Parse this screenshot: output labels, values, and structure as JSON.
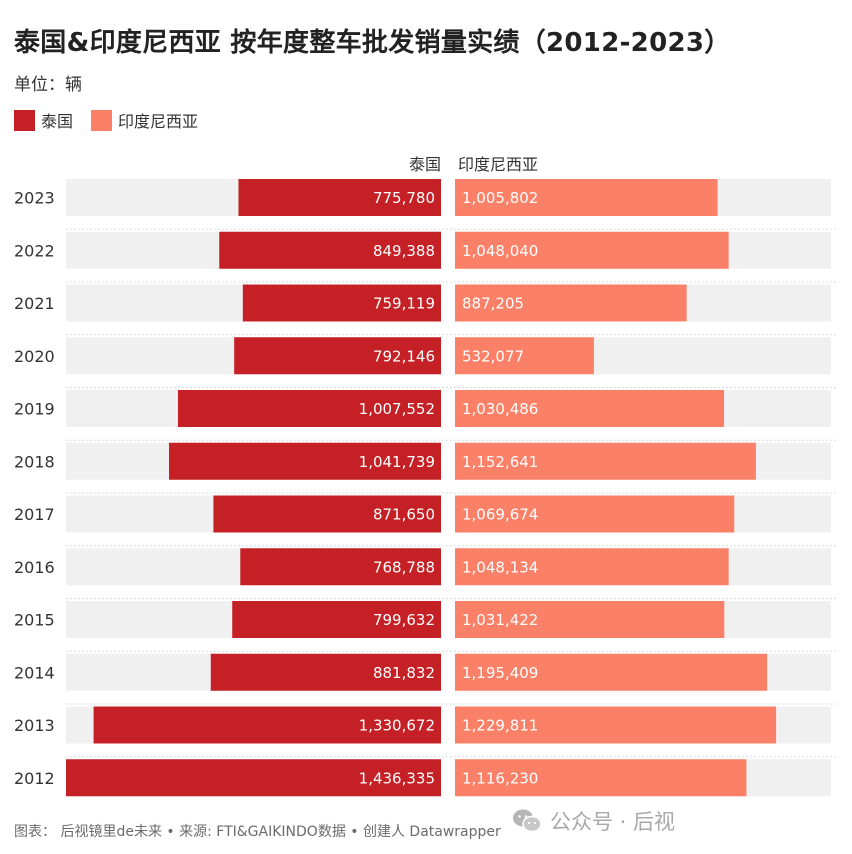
{
  "title": "泰国&印度尼西亚 按年度整车批发销量实绩（2012-2023）",
  "unit": "单位：辆",
  "legend": [
    {
      "label": "泰国",
      "color": "#c42026"
    },
    {
      "label": "印度尼西亚",
      "color": "#fb8068"
    }
  ],
  "column_headers": {
    "left": "泰国",
    "right": "印度尼西亚"
  },
  "footer": "图表： 后视镜里de未来 • 来源: FTI&GAIKINDO数据 • 创建人 Datawrapper",
  "watermark": {
    "text": "公众号 · 后视",
    "icon": "wechat-icon"
  },
  "colors": {
    "thailand": "#c42026",
    "indonesia": "#fb8068",
    "track": "#f0f0f0",
    "divider": "#cfcfcf"
  },
  "chart_data": {
    "type": "bar",
    "orientation": "horizontal-diverging",
    "categories": [
      "2023",
      "2022",
      "2021",
      "2020",
      "2019",
      "2018",
      "2017",
      "2016",
      "2015",
      "2014",
      "2013",
      "2012"
    ],
    "series": [
      {
        "name": "泰国",
        "values": [
          775780,
          849388,
          759119,
          792146,
          1007552,
          1041739,
          871650,
          768788,
          799632,
          881832,
          1330672,
          1436335
        ],
        "labels": [
          "775,780",
          "849,388",
          "759,119",
          "792,146",
          "1,007,552",
          "1,041,739",
          "871,650",
          "768,788",
          "799,632",
          "881,832",
          "1,330,672",
          "1,436,335"
        ]
      },
      {
        "name": "印度尼西亚",
        "values": [
          1005802,
          1048040,
          887205,
          532077,
          1030486,
          1152641,
          1069674,
          1048134,
          1031422,
          1195409,
          1229811,
          1116230
        ],
        "labels": [
          "1,005,802",
          "1,048,040",
          "887,205",
          "532,077",
          "1,030,486",
          "1,152,641",
          "1,069,674",
          "1,048,134",
          "1,031,422",
          "1,195,409",
          "1,229,811",
          "1,116,230"
        ]
      }
    ],
    "xlim": [
      0,
      1436335
    ],
    "grid": false,
    "legend_position": "top-left"
  }
}
